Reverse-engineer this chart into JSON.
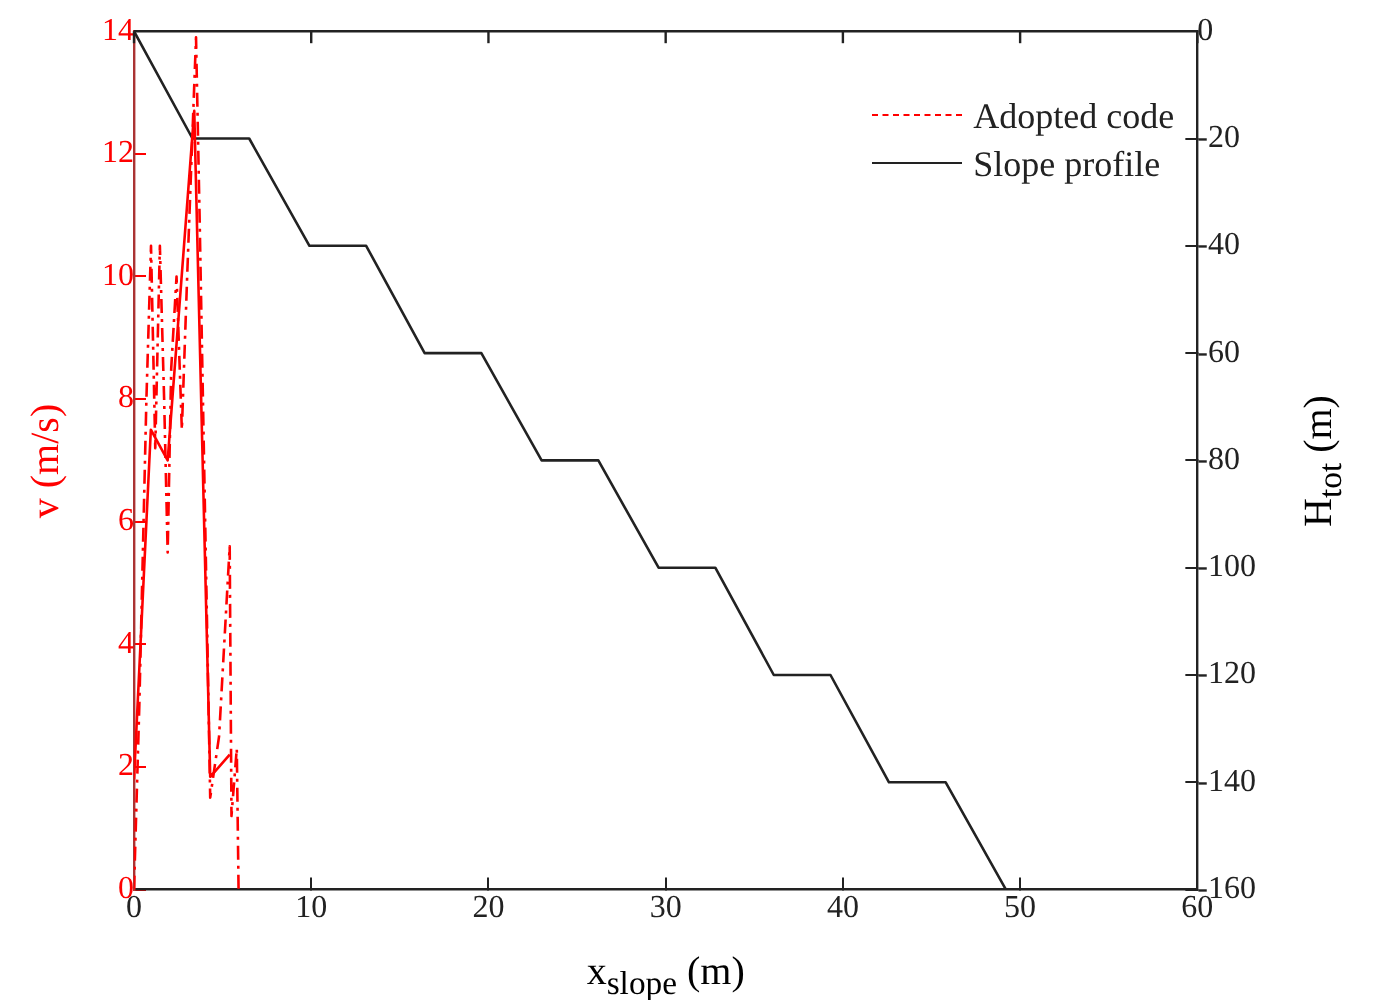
{
  "chart_data": {
    "type": "line",
    "xlabel": "x$_{slope}$ (m)",
    "ylabel": "v (m/s)",
    "y2label": "H$_{tot}$ (m)",
    "xlim": [
      0,
      60
    ],
    "xticks": [
      0,
      10,
      20,
      30,
      40,
      50,
      60
    ],
    "ylim": [
      0,
      14
    ],
    "yticks": [
      0,
      2,
      4,
      6,
      8,
      10,
      12,
      14
    ],
    "y2lim": [
      -160,
      0
    ],
    "y2ticks": [
      -160,
      -140,
      -120,
      -100,
      -80,
      -60,
      -40,
      -20,
      0
    ],
    "grid": false,
    "legend": "top right",
    "marker": "none",
    "series": [
      {
        "color": "#ff0000",
        "line_style": "solid",
        "x": [
          0,
          0.95,
          1.9,
          3.4,
          4.3,
          5.4
        ],
        "values": [
          1.8,
          7.5,
          7.0,
          12.7,
          1.84,
          2.2
        ]
      },
      {
        "name": "Adopted code",
        "color": "#ff0000",
        "line_style": "dashed",
        "x": [
          0,
          0.3,
          0.7,
          0.96,
          1.2,
          1.46,
          1.7,
          1.9,
          2.1,
          2.4,
          2.7,
          3.0,
          3.5,
          3.7,
          4.3,
          4.8,
          5.4,
          5.5,
          5.8,
          5.9
        ],
        "values": [
          0,
          3,
          8,
          10.5,
          7.2,
          10.5,
          8,
          5.5,
          8.5,
          10,
          7.5,
          10,
          13.9,
          11,
          1.5,
          2.5,
          5.6,
          1.2,
          2.3,
          0
        ]
      },
      {
        "name": "Slope profile",
        "color": "#222222",
        "line_style": "solid",
        "axis": "y2",
        "x": [
          0,
          3.3,
          6.5,
          9.9,
          13.1,
          16.4,
          19.6,
          23,
          26.2,
          29.6,
          32.8,
          36.1,
          39.3,
          42.6,
          45.8,
          49.2
        ],
        "values": [
          0,
          -20,
          -20,
          -40,
          -40,
          -60,
          -60,
          -80,
          -80,
          -100,
          -100,
          -120,
          -120,
          -140,
          -140,
          -160
        ]
      }
    ]
  }
}
